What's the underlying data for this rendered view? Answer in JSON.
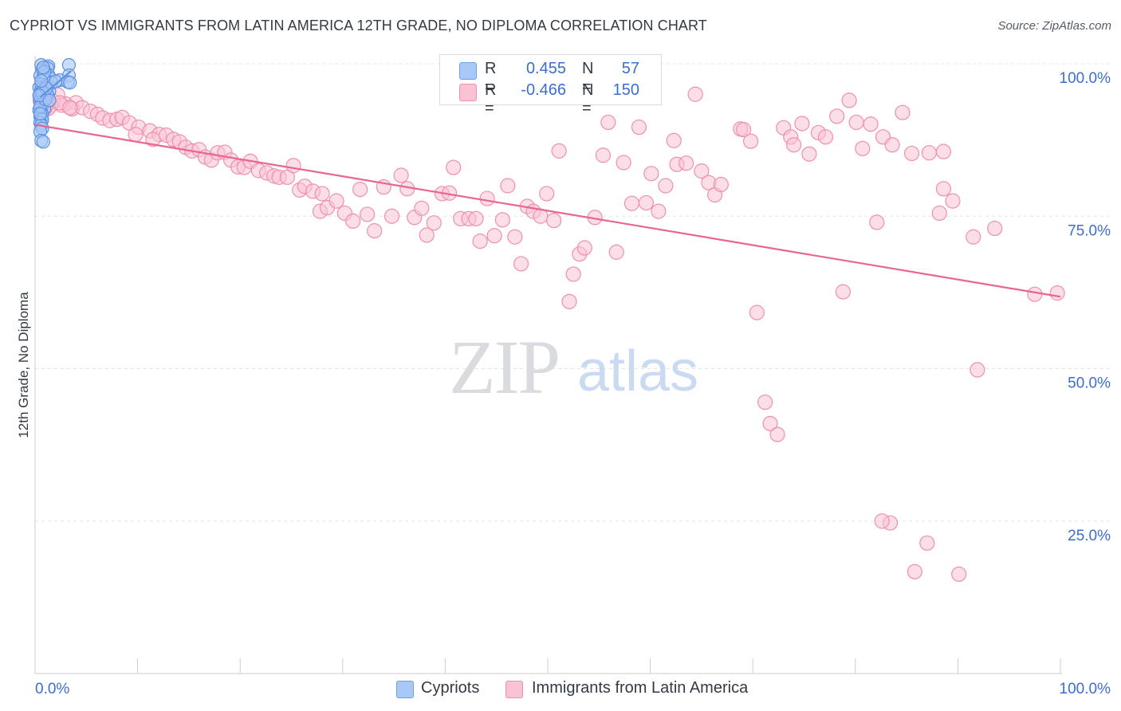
{
  "header": {
    "title": "CYPRIOT VS IMMIGRANTS FROM LATIN AMERICA 12TH GRADE, NO DIPLOMA CORRELATION CHART",
    "source": "Source: ZipAtlas.com"
  },
  "watermark": {
    "zip": "ZIP",
    "atlas": "atlas"
  },
  "legend": {
    "r_label": "R =",
    "n_label": "N =",
    "rows": [
      {
        "r": "0.455",
        "n": "57",
        "color": "#a9c8f5",
        "border": "#6f9fe8"
      },
      {
        "r": "-0.466",
        "n": "150",
        "color": "#f9c3d4",
        "border": "#ef8fae"
      }
    ]
  },
  "bottom_legend": [
    {
      "label": "Cypriots",
      "color": "#a9c8f5",
      "border": "#6f9fe8"
    },
    {
      "label": "Immigrants from Latin America",
      "color": "#f9c3d4",
      "border": "#ef8fae"
    }
  ],
  "chart_data": {
    "type": "scatter",
    "ylabel": "12th Grade, No Diploma",
    "xlim": [
      0,
      100
    ],
    "ylim": [
      0,
      100
    ],
    "x_tick_labels": [
      "0.0%",
      "100.0%"
    ],
    "y_tick_labels": [
      "100.0%",
      "75.0%",
      "50.0%",
      "25.0%"
    ],
    "y_ticks": [
      100,
      75,
      50,
      25
    ],
    "grid": true,
    "colors": {
      "blue": "#5b8fe0",
      "blue_fill": "#a9c8f5",
      "pink": "#e8668f",
      "pink_fill": "#f9c3d4",
      "tick_label": "#3b6ed1"
    },
    "series": [
      {
        "name": "Cypriots",
        "color": "#5b8fe0",
        "trend": {
          "x1": 0.5,
          "y1": 94.5,
          "x2": 3.5,
          "y2": 98.8
        },
        "points": [
          [
            0.6,
            99.8
          ],
          [
            1.3,
            99.6
          ],
          [
            1.2,
            99.3
          ],
          [
            3.3,
            99.8
          ],
          [
            0.7,
            99.0
          ],
          [
            0.9,
            98.8
          ],
          [
            1.0,
            98.4
          ],
          [
            1.3,
            98.2
          ],
          [
            3.3,
            98.1
          ],
          [
            0.5,
            98.0
          ],
          [
            0.8,
            97.8
          ],
          [
            1.5,
            97.6
          ],
          [
            0.9,
            97.4
          ],
          [
            2.4,
            97.3
          ],
          [
            3.2,
            97.0
          ],
          [
            3.4,
            96.9
          ],
          [
            0.6,
            96.6
          ],
          [
            1.1,
            96.4
          ],
          [
            0.4,
            96.1
          ],
          [
            0.6,
            95.8
          ],
          [
            0.8,
            95.6
          ],
          [
            1.4,
            95.5
          ],
          [
            0.5,
            95.2
          ],
          [
            0.9,
            95.0
          ],
          [
            1.2,
            94.9
          ],
          [
            0.5,
            94.6
          ],
          [
            0.6,
            94.3
          ],
          [
            0.8,
            94.0
          ],
          [
            0.5,
            93.8
          ],
          [
            0.6,
            93.4
          ],
          [
            0.7,
            93.2
          ],
          [
            0.5,
            92.9
          ],
          [
            0.9,
            92.6
          ],
          [
            0.4,
            92.4
          ],
          [
            0.6,
            92.1
          ],
          [
            0.7,
            91.7
          ],
          [
            0.5,
            91.4
          ],
          [
            0.6,
            91.0
          ],
          [
            0.7,
            90.8
          ],
          [
            0.5,
            90.3
          ],
          [
            0.6,
            89.9
          ],
          [
            0.7,
            89.4
          ],
          [
            0.5,
            88.9
          ],
          [
            0.6,
            87.4
          ],
          [
            0.8,
            87.2
          ],
          [
            0.5,
            93.0
          ],
          [
            1.0,
            94.2
          ],
          [
            0.7,
            95.3
          ],
          [
            1.6,
            96.9
          ],
          [
            2.0,
            97.1
          ],
          [
            0.9,
            98.6
          ],
          [
            1.1,
            96.0
          ],
          [
            0.4,
            94.8
          ],
          [
            0.6,
            97.2
          ],
          [
            0.8,
            99.4
          ],
          [
            1.4,
            94.0
          ],
          [
            0.5,
            91.8
          ]
        ]
      },
      {
        "name": "Immigrants from Latin America",
        "color": "#e8668f",
        "trend": {
          "x1": 0,
          "y1": 90.0,
          "x2": 100,
          "y2": 61.8
        },
        "points": [
          [
            0.8,
            95.4
          ],
          [
            1.2,
            94.6
          ],
          [
            0.5,
            94.0
          ],
          [
            1.8,
            93.8
          ],
          [
            2.2,
            94.9
          ],
          [
            3.0,
            93.4
          ],
          [
            2.6,
            93.2
          ],
          [
            4.0,
            93.6
          ],
          [
            3.6,
            92.6
          ],
          [
            1.5,
            93.2
          ],
          [
            0.9,
            92.4
          ],
          [
            1.3,
            92.7
          ],
          [
            4.6,
            92.8
          ],
          [
            5.4,
            92.2
          ],
          [
            6.1,
            91.7
          ],
          [
            6.6,
            91.1
          ],
          [
            7.3,
            90.7
          ],
          [
            8.0,
            90.9
          ],
          [
            8.5,
            91.2
          ],
          [
            9.2,
            90.3
          ],
          [
            10.1,
            89.6
          ],
          [
            9.8,
            88.4
          ],
          [
            11.2,
            89.0
          ],
          [
            12.1,
            88.4
          ],
          [
            11.5,
            87.6
          ],
          [
            12.8,
            88.3
          ],
          [
            13.5,
            87.6
          ],
          [
            14.1,
            87.2
          ],
          [
            14.7,
            86.3
          ],
          [
            15.3,
            85.7
          ],
          [
            16.0,
            85.9
          ],
          [
            16.6,
            84.7
          ],
          [
            17.2,
            84.2
          ],
          [
            17.8,
            85.4
          ],
          [
            18.5,
            85.5
          ],
          [
            19.1,
            84.2
          ],
          [
            19.8,
            83.1
          ],
          [
            20.4,
            83.0
          ],
          [
            21.0,
            84.0
          ],
          [
            21.8,
            82.5
          ],
          [
            22.6,
            82.1
          ],
          [
            23.3,
            81.6
          ],
          [
            23.8,
            81.4
          ],
          [
            24.6,
            81.4
          ],
          [
            25.2,
            83.3
          ],
          [
            25.8,
            79.3
          ],
          [
            26.3,
            79.9
          ],
          [
            27.1,
            79.1
          ],
          [
            28.0,
            78.7
          ],
          [
            27.8,
            75.8
          ],
          [
            28.5,
            76.4
          ],
          [
            29.4,
            77.5
          ],
          [
            30.2,
            75.5
          ],
          [
            31.0,
            74.2
          ],
          [
            31.7,
            79.4
          ],
          [
            32.4,
            75.3
          ],
          [
            33.1,
            72.6
          ],
          [
            34.0,
            79.8
          ],
          [
            34.8,
            75.0
          ],
          [
            35.7,
            81.7
          ],
          [
            36.3,
            79.5
          ],
          [
            37.0,
            74.8
          ],
          [
            37.7,
            76.3
          ],
          [
            38.2,
            71.9
          ],
          [
            38.9,
            73.9
          ],
          [
            39.7,
            78.7
          ],
          [
            40.4,
            78.8
          ],
          [
            40.8,
            83.0
          ],
          [
            41.5,
            74.6
          ],
          [
            42.3,
            74.6
          ],
          [
            43.0,
            74.6
          ],
          [
            43.4,
            70.9
          ],
          [
            44.1,
            77.9
          ],
          [
            44.8,
            71.8
          ],
          [
            45.6,
            74.4
          ],
          [
            46.1,
            80.0
          ],
          [
            46.8,
            71.6
          ],
          [
            47.4,
            67.2
          ],
          [
            48.0,
            76.6
          ],
          [
            48.6,
            75.8
          ],
          [
            49.3,
            75.0
          ],
          [
            49.9,
            78.7
          ],
          [
            50.6,
            74.3
          ],
          [
            51.1,
            85.7
          ],
          [
            52.1,
            61.0
          ],
          [
            52.5,
            65.5
          ],
          [
            53.1,
            68.8
          ],
          [
            53.6,
            69.8
          ],
          [
            54.6,
            74.8
          ],
          [
            55.4,
            85.0
          ],
          [
            55.9,
            90.4
          ],
          [
            56.7,
            69.1
          ],
          [
            57.4,
            83.8
          ],
          [
            58.2,
            77.1
          ],
          [
            58.9,
            89.6
          ],
          [
            59.6,
            77.2
          ],
          [
            60.1,
            82.0
          ],
          [
            60.8,
            75.8
          ],
          [
            61.5,
            80.0
          ],
          [
            62.3,
            87.4
          ],
          [
            62.6,
            83.5
          ],
          [
            63.5,
            83.7
          ],
          [
            64.4,
            95.0
          ],
          [
            65.0,
            82.4
          ],
          [
            65.7,
            80.5
          ],
          [
            66.3,
            78.5
          ],
          [
            66.9,
            80.2
          ],
          [
            68.8,
            89.3
          ],
          [
            69.1,
            89.2
          ],
          [
            69.8,
            87.3
          ],
          [
            70.4,
            59.2
          ],
          [
            71.2,
            44.5
          ],
          [
            71.7,
            41.0
          ],
          [
            72.4,
            39.2
          ],
          [
            73.0,
            89.5
          ],
          [
            73.7,
            88.0
          ],
          [
            74.0,
            86.7
          ],
          [
            74.8,
            90.2
          ],
          [
            75.5,
            85.2
          ],
          [
            76.4,
            88.7
          ],
          [
            77.1,
            88.0
          ],
          [
            78.2,
            91.4
          ],
          [
            78.8,
            62.6
          ],
          [
            79.4,
            94.0
          ],
          [
            80.1,
            90.4
          ],
          [
            80.7,
            86.1
          ],
          [
            81.5,
            90.1
          ],
          [
            82.1,
            74.0
          ],
          [
            82.7,
            88.0
          ],
          [
            83.6,
            86.7
          ],
          [
            84.6,
            92.0
          ],
          [
            85.5,
            85.3
          ],
          [
            87.2,
            85.4
          ],
          [
            88.6,
            85.6
          ],
          [
            88.2,
            75.5
          ],
          [
            88.6,
            79.5
          ],
          [
            89.5,
            77.5
          ],
          [
            91.5,
            71.6
          ],
          [
            91.9,
            49.8
          ],
          [
            93.6,
            73.0
          ],
          [
            83.4,
            24.7
          ],
          [
            87.0,
            21.4
          ],
          [
            99.7,
            62.4
          ],
          [
            97.5,
            62.2
          ],
          [
            82.6,
            25.0
          ],
          [
            85.8,
            16.7
          ],
          [
            90.1,
            16.3
          ],
          [
            1.0,
            93.0
          ],
          [
            2.4,
            93.6
          ],
          [
            3.4,
            92.8
          ]
        ]
      }
    ]
  }
}
